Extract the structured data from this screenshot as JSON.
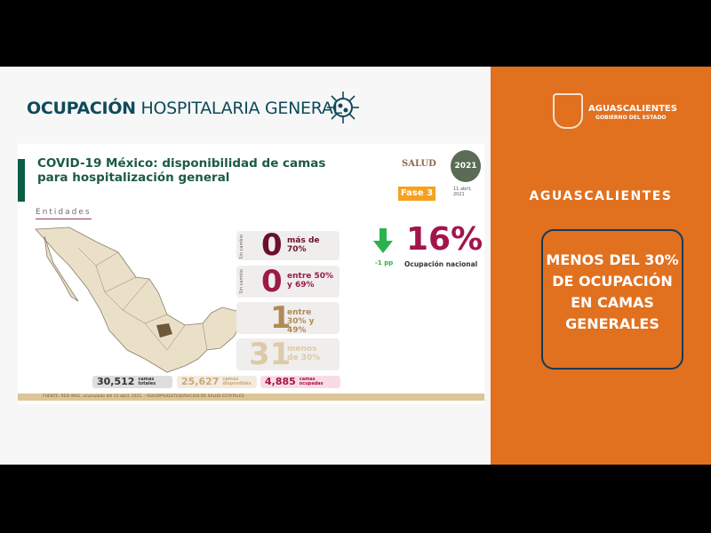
{
  "header": {
    "title_bold": "OCUPACIÓN",
    "title_rest": "HOSPITALARIA GENERAL",
    "icon": "virus-icon"
  },
  "slide": {
    "title": "COVID-19 México: disponibilidad de camas para hospitalización general",
    "salud": "SALUD",
    "seal": "2021",
    "fase": "Fase 3",
    "date": "11 abril, 2021",
    "entidades": "Entidades",
    "cards": [
      {
        "side": "Sin cambio",
        "num": "0",
        "label": "más de 70%",
        "color": "#6b0f2e"
      },
      {
        "side": "Sin cambio",
        "num": "0",
        "label": "entre 50% y 69%",
        "color": "#9b1a4a"
      },
      {
        "side": "",
        "num": "1",
        "label": "entre 30% y 49%",
        "color": "#b08a55"
      },
      {
        "side": "",
        "num": "31",
        "label": "menos de 30%",
        "color": "#dccaa9"
      }
    ],
    "national": {
      "pct": "16%",
      "label": "Ocupación nacional",
      "change": "-1 pp",
      "arrow": "arrow-down-icon",
      "color": "#a3154a",
      "arrow_color": "#2bb24c"
    },
    "totals": [
      {
        "num": "30,512",
        "label": "camas totales",
        "bg": "#dedede",
        "color": "#333"
      },
      {
        "num": "25,627",
        "label": "camas disponibles",
        "bg": "#f3ebdf",
        "color": "#c9a87a"
      },
      {
        "num": "4,885",
        "label": "camas ocupadas",
        "bg": "#f9dbe4",
        "color": "#a3154a"
      }
    ],
    "source": "FUENTE: RED IRAG, acumulado del 11 abril, 2021. - SSA/SPPS/DGTI/SERVICIOS DE SALUD ESTATALES"
  },
  "right": {
    "brand": "AGUASCALIENTES",
    "brand_sub": "GOBIERNO DEL ESTADO",
    "state": "AGUASCALIENTES",
    "message": "MENOS DEL 30% DE OCUPACIÓN EN CAMAS GENERALES"
  }
}
